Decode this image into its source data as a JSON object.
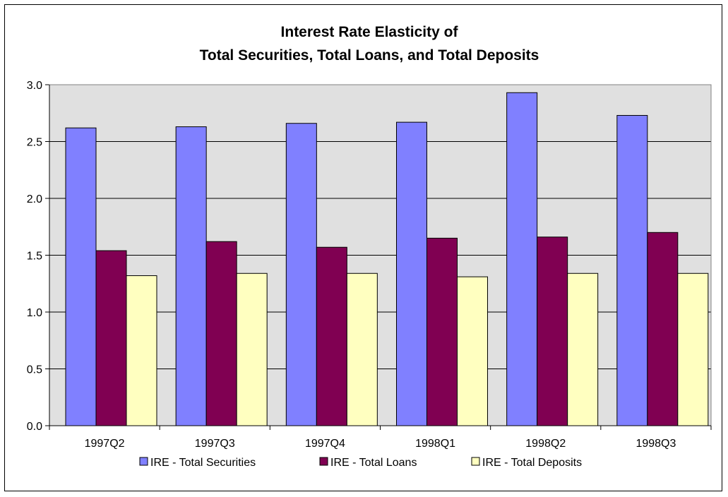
{
  "chart_data": {
    "type": "bar",
    "title_lines": [
      "Interest Rate Elasticity of",
      "Total Securities, Total Loans, and Total Deposits"
    ],
    "xlabel": "",
    "ylabel": "",
    "categories": [
      "1997Q2",
      "1997Q3",
      "1997Q4",
      "1998Q1",
      "1998Q2",
      "1998Q3"
    ],
    "series": [
      {
        "name": "IRE - Total Securities",
        "color": "#8080ff",
        "values": [
          2.62,
          2.63,
          2.66,
          2.67,
          2.93,
          2.73
        ]
      },
      {
        "name": "IRE - Total Loans",
        "color": "#800052",
        "values": [
          1.54,
          1.62,
          1.57,
          1.65,
          1.66,
          1.7
        ]
      },
      {
        "name": "IRE - Total Deposits",
        "color": "#ffffc0",
        "values": [
          1.32,
          1.34,
          1.34,
          1.31,
          1.34,
          1.34
        ]
      }
    ],
    "ylim": [
      0,
      3.0
    ],
    "yticks": [
      "0.0",
      "0.5",
      "1.0",
      "1.5",
      "2.0",
      "2.5",
      "3.0"
    ],
    "grid": true,
    "plot_background": "#e0e0e0",
    "legend_position": "bottom"
  }
}
